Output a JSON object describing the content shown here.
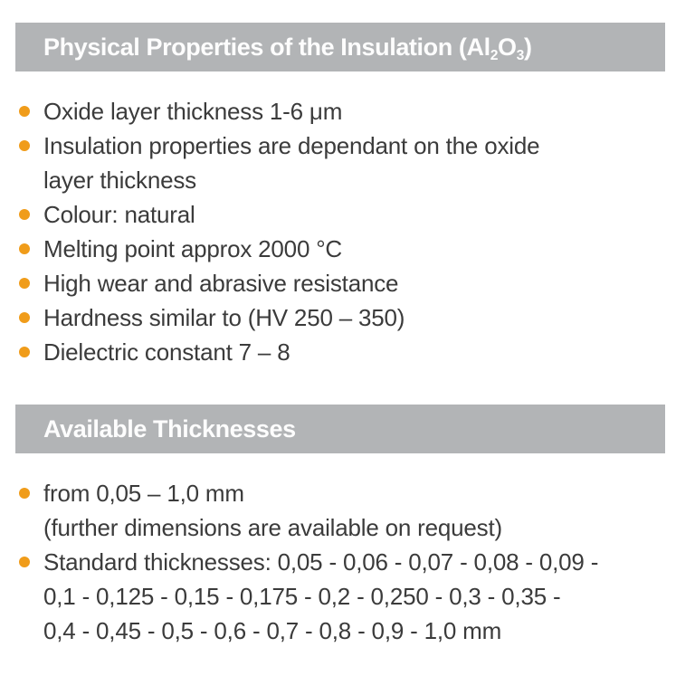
{
  "colors": {
    "page_bg": "#ffffff",
    "header_bar_bg": "#b2b4b6",
    "header_text": "#fdfdfd",
    "bullet_dot": "#f09c1a",
    "body_text": "#3b3b3b"
  },
  "section1": {
    "title_prefix": "Physical Properties of the Insulation (Al",
    "title_sub1": "2",
    "title_mid": "O",
    "title_sub2": "3",
    "title_suffix": ")",
    "bullets": [
      {
        "lines": [
          "Oxide layer thickness 1-6 μm"
        ]
      },
      {
        "lines": [
          "Insulation properties are dependant on the oxide",
          "layer thickness"
        ]
      },
      {
        "lines": [
          "Colour: natural"
        ]
      },
      {
        "lines": [
          "Melting point approx 2000 °C"
        ]
      },
      {
        "lines": [
          "High wear and abrasive resistance"
        ]
      },
      {
        "lines": [
          "Hardness similar to (HV 250 – 350)"
        ]
      },
      {
        "lines": [
          "Dielectric constant 7 – 8"
        ]
      }
    ]
  },
  "section2": {
    "title": "Available Thicknesses",
    "bullets": [
      {
        "lines": [
          "from 0,05 – 1,0 mm",
          "(further dimensions are available on request)"
        ]
      },
      {
        "lines": [
          "Standard thicknesses: 0,05 - 0,06 - 0,07 - 0,08 - 0,09 -",
          "0,1 - 0,125 - 0,15 - 0,175 - 0,2 - 0,250 - 0,3 - 0,35 -",
          "0,4 - 0,45 - 0,5 - 0,6 - 0,7 - 0,8 - 0,9 - 1,0 mm"
        ]
      }
    ]
  }
}
